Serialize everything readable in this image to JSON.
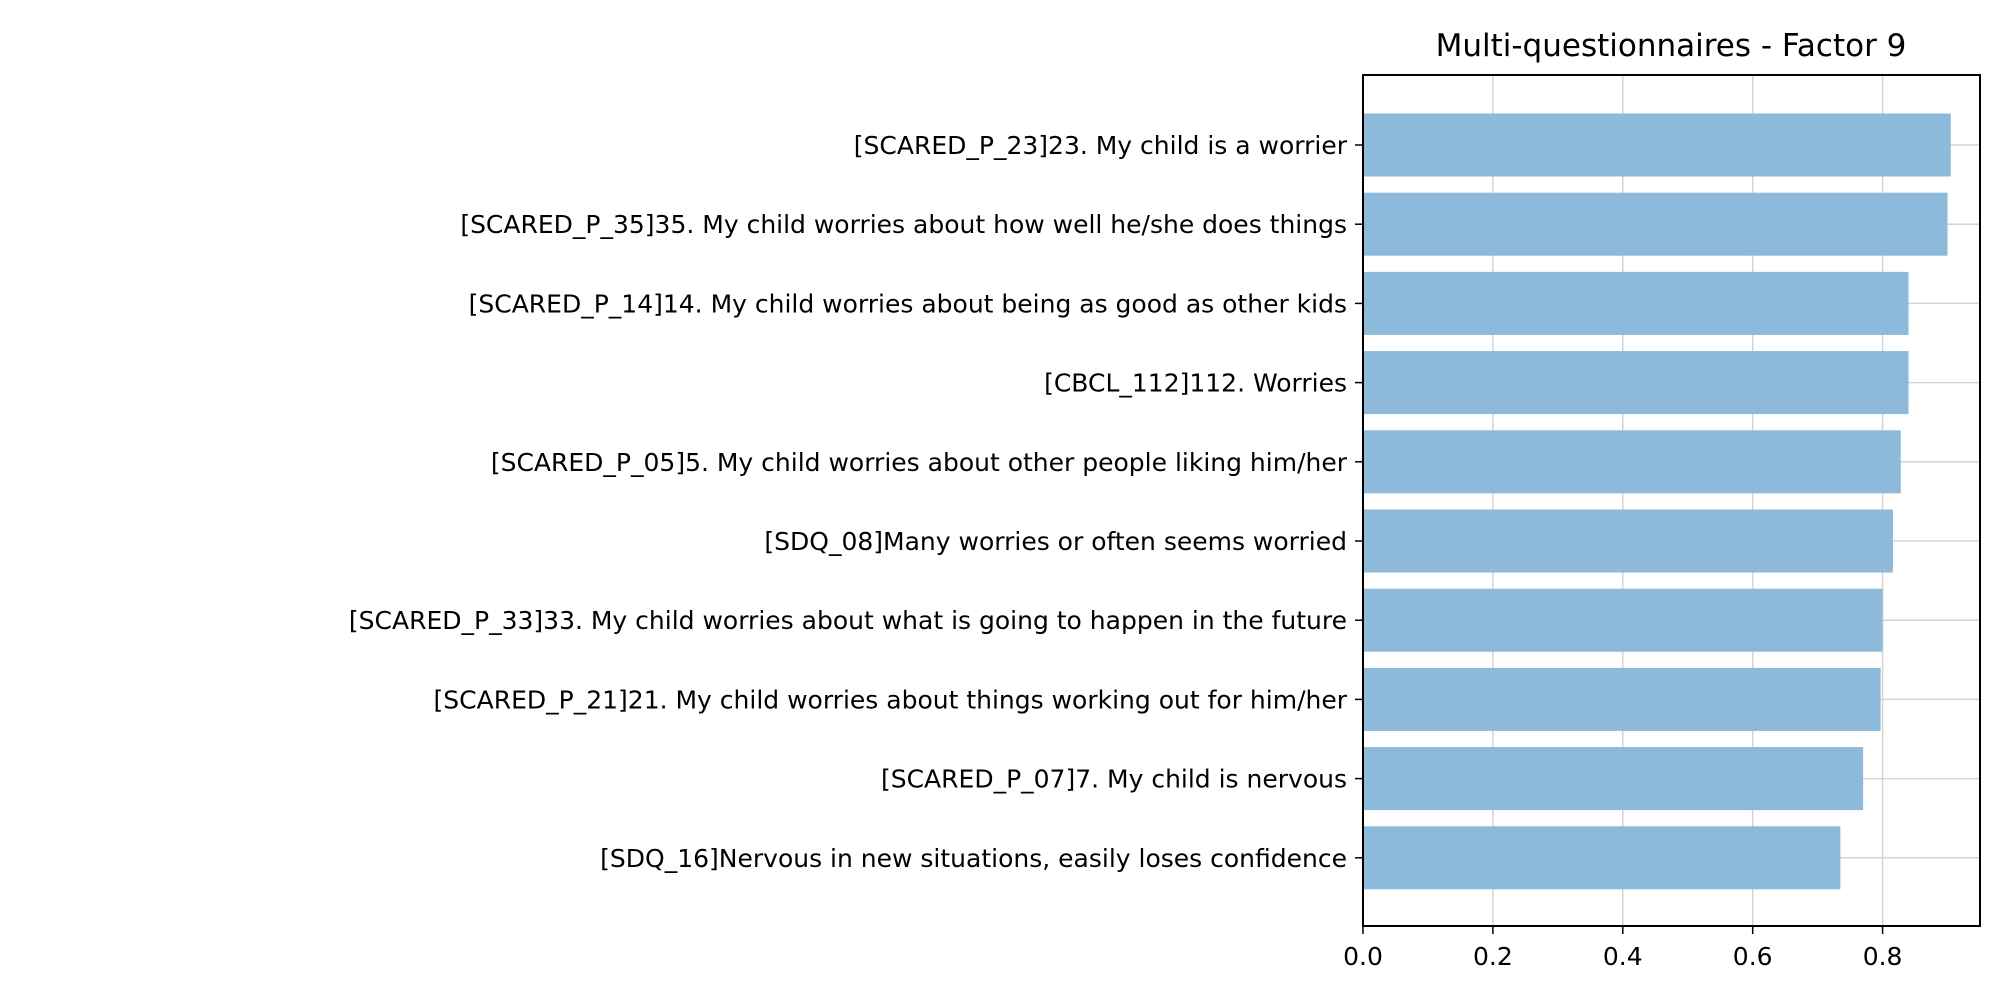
{
  "colors": {
    "bar": "#8db9da",
    "grid": "#d3d3d3",
    "axis": "#000000",
    "background": "#ffffff"
  },
  "chart_data": {
    "type": "bar",
    "orientation": "horizontal",
    "title": "Multi-questionnaires - Factor 9",
    "xlabel": "",
    "ylabel": "",
    "xlim": [
      0,
      0.95
    ],
    "xticks": [
      "0.0",
      "0.2",
      "0.4",
      "0.6",
      "0.8"
    ],
    "grid": true,
    "legend": "none",
    "categories": [
      "[SCARED_P_23]23. My child is a worrier",
      "[SCARED_P_35]35. My child worries about how well he/she does things",
      "[SCARED_P_14]14. My child worries about being as good as other kids",
      "[CBCL_112]112. Worries",
      "[SCARED_P_05]5. My child worries about other people liking him/her",
      "[SDQ_08]Many worries or often seems worried",
      "[SCARED_P_33]33. My child worries about what is going to happen in the future",
      "[SCARED_P_21]21. My child worries about things working out for him/her",
      "[SCARED_P_07]7. My child is nervous",
      "[SDQ_16]Nervous in new situations, easily loses confidence"
    ],
    "values": [
      0.905,
      0.9,
      0.84,
      0.84,
      0.828,
      0.816,
      0.8,
      0.797,
      0.77,
      0.735
    ]
  }
}
